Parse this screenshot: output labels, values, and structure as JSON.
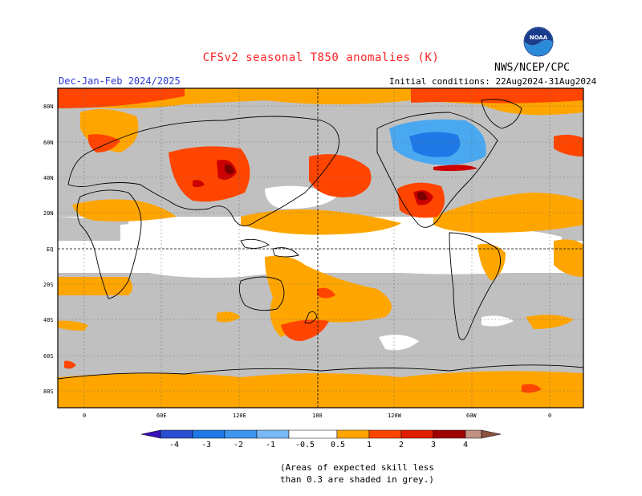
{
  "header": {
    "title": "CFSv2 seasonal T850 anomalies (K)",
    "period": "Dec-Jan-Feb 2024/2025",
    "initial_conditions": "Initial conditions: 22Aug2024-31Aug2024",
    "agency": "NWS/NCEP/CPC",
    "logo_text": "NOAA"
  },
  "map": {
    "lat_labels": [
      "80N",
      "60N",
      "40N",
      "20N",
      "EQ",
      "20S",
      "40S",
      "60S",
      "80S"
    ],
    "lon_labels": [
      "0",
      "60E",
      "120E",
      "180",
      "120W",
      "60W",
      "0"
    ],
    "grid": "dotted",
    "colors": {
      "grey_low_skill": "#c0c0c0",
      "neutral": "#ffffff",
      "warm_0_5_1": "#ffa500",
      "warm_1_2": "#ff4500",
      "warm_2_3": "#cc0000",
      "warm_3_4": "#7a0000",
      "cold_0_5_1": "#4aa8f0",
      "cold_1_2": "#1e78e6"
    }
  },
  "colorbar": {
    "labels": [
      "-4",
      "-3",
      "-2",
      "-1",
      "-0.5",
      "0.5",
      "1",
      "2",
      "3",
      "4"
    ],
    "colors": [
      "#3a10b8",
      "#2a4ed0",
      "#1e78e6",
      "#3c96ee",
      "#78b8f6",
      "#ffffff",
      "#ffa500",
      "#ff4500",
      "#e01e00",
      "#a00000",
      "#c09080",
      "#8a5040"
    ]
  },
  "footnote": "(Areas of expected skill less\nthan 0.3 are shaded in grey.)"
}
